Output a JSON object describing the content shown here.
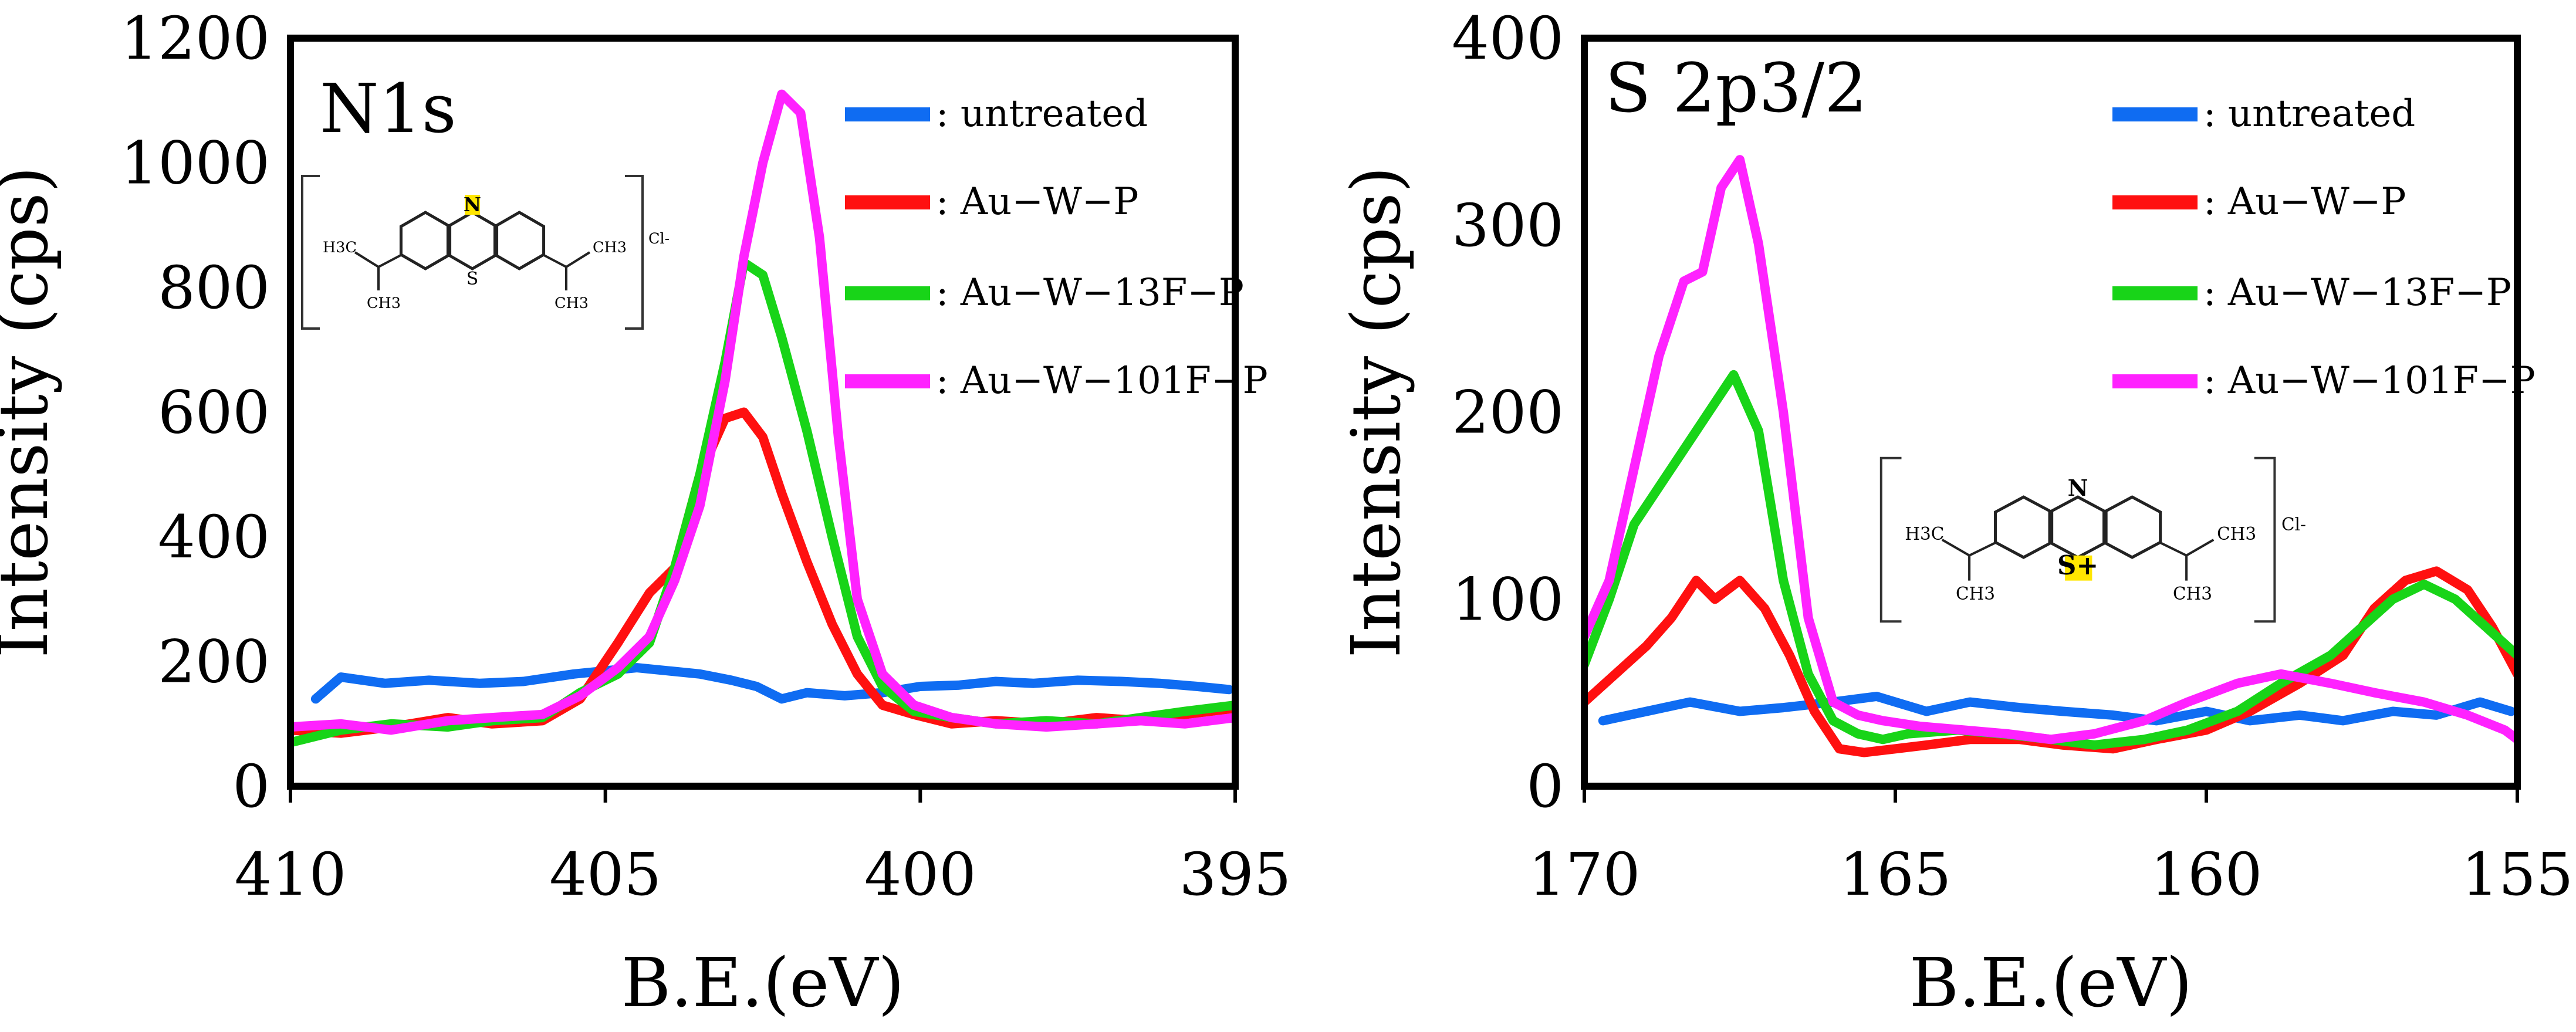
{
  "chart_data": [
    {
      "type": "line",
      "title": "N1s",
      "xlabel": "B.E.(eV)",
      "ylabel": "Intensity (cps)",
      "xlim": [
        410,
        395
      ],
      "ylim": [
        0,
        1200
      ],
      "xticks": [
        410,
        405,
        400,
        395
      ],
      "yticks": [
        0,
        200,
        400,
        600,
        800,
        1000,
        1200
      ],
      "legend_position": "top-right",
      "inset": {
        "type": "molecule-structure",
        "highlight": "N",
        "labels": [
          "N",
          "S",
          "H3C",
          "CH3",
          "Cl-"
        ]
      },
      "series": [
        {
          "name": ": untreated",
          "color": "#0f6cf2",
          "x": [
            409.6,
            409.2,
            408.5,
            407.8,
            407,
            406.3,
            405.5,
            405,
            404.5,
            404,
            403.5,
            403,
            402.6,
            402.2,
            401.8,
            401.2,
            400.6,
            400,
            399.4,
            398.8,
            398.2,
            397.5,
            396.8,
            396.2,
            395.6,
            395.1
          ],
          "y": [
            140,
            175,
            165,
            170,
            165,
            168,
            180,
            185,
            190,
            185,
            180,
            170,
            160,
            140,
            150,
            145,
            150,
            160,
            162,
            168,
            165,
            170,
            168,
            165,
            160,
            155
          ]
        },
        {
          "name": ": Au−W−P",
          "color": "#ff1010",
          "x": [
            410,
            409.2,
            408.4,
            407.5,
            406.8,
            406,
            405.4,
            404.8,
            404.3,
            403.9,
            403.5,
            403.1,
            402.8,
            402.5,
            402.2,
            401.8,
            401.4,
            401,
            400.6,
            400.1,
            399.5,
            398.8,
            398,
            397.2,
            396.5,
            395.8,
            395
          ],
          "y": [
            90,
            85,
            95,
            110,
            100,
            105,
            140,
            230,
            310,
            350,
            500,
            590,
            600,
            560,
            470,
            360,
            260,
            180,
            130,
            115,
            100,
            105,
            100,
            110,
            105,
            115,
            125
          ]
        },
        {
          "name": ": Au−W−13F−P",
          "color": "#18d418",
          "x": [
            410,
            409.2,
            408.4,
            407.5,
            406.8,
            406,
            405.4,
            404.8,
            404.3,
            403.9,
            403.5,
            403.1,
            402.8,
            402.5,
            402.2,
            401.8,
            401.4,
            401,
            400.6,
            400.1,
            399.5,
            398.8,
            398,
            397.2,
            396.5,
            395.8,
            395
          ],
          "y": [
            70,
            90,
            100,
            95,
            105,
            110,
            150,
            180,
            230,
            350,
            500,
            680,
            840,
            820,
            720,
            570,
            400,
            240,
            160,
            120,
            110,
            100,
            105,
            100,
            110,
            120,
            130
          ]
        },
        {
          "name": ": Au−W−101F−P",
          "color": "#ff22ff",
          "x": [
            410,
            409.2,
            408.4,
            407.5,
            406.8,
            406,
            405.4,
            404.8,
            404.3,
            403.9,
            403.5,
            403.1,
            402.8,
            402.5,
            402.2,
            401.9,
            401.6,
            401.3,
            401,
            400.6,
            400.1,
            399.5,
            398.8,
            398,
            397.2,
            396.5,
            395.8,
            395
          ],
          "y": [
            95,
            100,
            90,
            105,
            110,
            115,
            145,
            190,
            240,
            330,
            450,
            650,
            850,
            1000,
            1110,
            1080,
            880,
            560,
            300,
            180,
            130,
            110,
            100,
            95,
            100,
            105,
            100,
            110
          ]
        }
      ]
    },
    {
      "type": "line",
      "title": "S 2p3/2",
      "xlabel": "B.E.(eV)",
      "ylabel": "Intensity (cps)",
      "xlim": [
        170,
        155
      ],
      "ylim": [
        0,
        400
      ],
      "xticks": [
        170,
        165,
        160,
        155
      ],
      "yticks": [
        0,
        100,
        200,
        300,
        400
      ],
      "legend_position": "top-right",
      "inset": {
        "type": "molecule-structure",
        "highlight": "S+",
        "labels": [
          "N",
          "S+",
          "H3C",
          "CH3",
          "Cl-"
        ]
      },
      "series": [
        {
          "name": ": untreated",
          "color": "#0f6cf2",
          "x": [
            169.7,
            169,
            168.3,
            167.5,
            166.8,
            166,
            165.3,
            164.5,
            163.8,
            163,
            162.3,
            161.5,
            160.8,
            160,
            159.3,
            158.5,
            157.8,
            157,
            156.3,
            155.6,
            155.1
          ],
          "y": [
            35,
            40,
            45,
            40,
            42,
            45,
            48,
            40,
            45,
            42,
            40,
            38,
            35,
            40,
            35,
            38,
            35,
            40,
            38,
            45,
            40
          ]
        },
        {
          "name": ": Au−W−P",
          "color": "#ff1010",
          "x": [
            170,
            169.5,
            169,
            168.6,
            168.2,
            167.9,
            167.5,
            167.1,
            166.7,
            166.3,
            165.9,
            165.5,
            165,
            164.5,
            163.8,
            163,
            162.3,
            161.5,
            160.8,
            160,
            159.3,
            158.5,
            157.8,
            157.3,
            156.8,
            156.3,
            155.8,
            155.4,
            155
          ],
          "y": [
            45,
            60,
            75,
            90,
            110,
            100,
            110,
            95,
            70,
            40,
            20,
            18,
            20,
            22,
            25,
            25,
            22,
            20,
            25,
            30,
            40,
            55,
            70,
            95,
            110,
            115,
            105,
            85,
            60
          ]
        },
        {
          "name": ": Au−W−13F−P",
          "color": "#18d418",
          "x": [
            170,
            169.6,
            169.2,
            168.8,
            168.4,
            168,
            167.6,
            167.2,
            166.8,
            166.4,
            166,
            165.6,
            165.2,
            164.8,
            164,
            163.3,
            162.5,
            161.8,
            161,
            160.3,
            159.5,
            158.8,
            158,
            157.5,
            157,
            156.5,
            156,
            155.5,
            155
          ],
          "y": [
            65,
            100,
            140,
            160,
            180,
            200,
            220,
            190,
            110,
            60,
            35,
            28,
            25,
            28,
            30,
            28,
            25,
            22,
            25,
            30,
            40,
            55,
            70,
            85,
            100,
            108,
            100,
            85,
            70
          ]
        },
        {
          "name": ": Au−W−101F−P",
          "color": "#ff22ff",
          "x": [
            170,
            169.6,
            169.2,
            168.8,
            168.4,
            168.1,
            167.8,
            167.5,
            167.2,
            166.8,
            166.4,
            166,
            165.6,
            165.2,
            164.6,
            163.9,
            163.2,
            162.5,
            161.8,
            161,
            160.3,
            159.5,
            158.8,
            158,
            157.3,
            156.5,
            155.8,
            155.2,
            155
          ],
          "y": [
            80,
            110,
            170,
            230,
            270,
            275,
            320,
            335,
            290,
            200,
            90,
            45,
            38,
            35,
            32,
            30,
            28,
            25,
            28,
            35,
            45,
            55,
            60,
            55,
            50,
            45,
            38,
            30,
            25
          ]
        }
      ]
    }
  ]
}
